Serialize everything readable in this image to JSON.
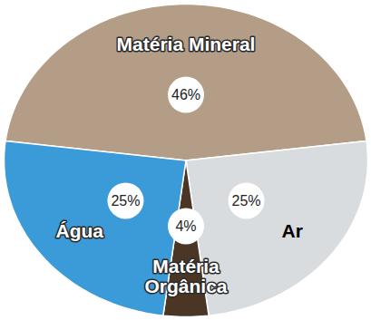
{
  "chart_data": {
    "type": "pie",
    "categories": [
      "Matéria Mineral",
      "Ar",
      "Matéria\nOrgânica",
      "Água"
    ],
    "values": [
      46,
      25,
      4,
      25
    ],
    "value_labels": [
      "46%",
      "25%",
      "4%",
      "25%"
    ],
    "colors": [
      "#b39d86",
      "#d8dcdf",
      "#4b3626",
      "#3b9ad8"
    ],
    "data_labels": true
  }
}
